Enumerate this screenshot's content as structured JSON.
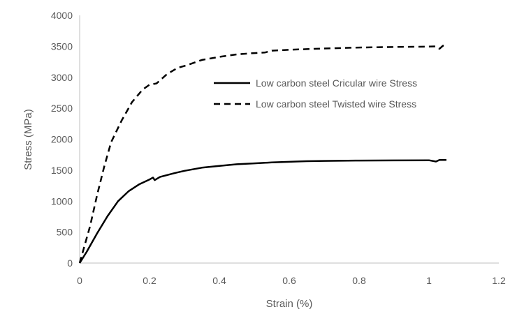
{
  "chart_data": {
    "type": "line",
    "xlabel": "Strain (%)",
    "ylabel": "Stress (MPa)",
    "xlim": [
      0,
      1.2
    ],
    "ylim": [
      0,
      4000
    ],
    "xticks": [
      "0",
      "0.2",
      "0.4",
      "0.6",
      "0.8",
      "1",
      "1.2"
    ],
    "yticks": [
      "0",
      "500",
      "1000",
      "1500",
      "2000",
      "2500",
      "3000",
      "3500",
      "4000"
    ],
    "grid": false,
    "legend_position": "upper-right-inside",
    "series": [
      {
        "name": "Low carbon steel Cricular wire Stress",
        "style": "solid",
        "color": "#000000",
        "points": [
          [
            0,
            0
          ],
          [
            0.02,
            180
          ],
          [
            0.05,
            480
          ],
          [
            0.08,
            760
          ],
          [
            0.11,
            1000
          ],
          [
            0.14,
            1160
          ],
          [
            0.17,
            1270
          ],
          [
            0.2,
            1350
          ],
          [
            0.21,
            1380
          ],
          [
            0.215,
            1340
          ],
          [
            0.23,
            1390
          ],
          [
            0.27,
            1450
          ],
          [
            0.3,
            1490
          ],
          [
            0.35,
            1540
          ],
          [
            0.4,
            1570
          ],
          [
            0.45,
            1595
          ],
          [
            0.5,
            1610
          ],
          [
            0.55,
            1625
          ],
          [
            0.6,
            1635
          ],
          [
            0.62,
            1640
          ],
          [
            0.65,
            1645
          ],
          [
            0.7,
            1650
          ],
          [
            0.8,
            1655
          ],
          [
            0.9,
            1658
          ],
          [
            1.0,
            1660
          ],
          [
            1.02,
            1640
          ],
          [
            1.03,
            1665
          ],
          [
            1.05,
            1665
          ]
        ]
      },
      {
        "name": "Low carbon steel Twisted wire Stress",
        "style": "dashed",
        "color": "#000000",
        "points": [
          [
            0,
            0
          ],
          [
            0.01,
            200
          ],
          [
            0.03,
            600
          ],
          [
            0.05,
            1100
          ],
          [
            0.07,
            1550
          ],
          [
            0.09,
            1950
          ],
          [
            0.12,
            2300
          ],
          [
            0.15,
            2600
          ],
          [
            0.18,
            2800
          ],
          [
            0.2,
            2880
          ],
          [
            0.22,
            2900
          ],
          [
            0.25,
            3050
          ],
          [
            0.28,
            3150
          ],
          [
            0.31,
            3200
          ],
          [
            0.35,
            3280
          ],
          [
            0.4,
            3330
          ],
          [
            0.45,
            3370
          ],
          [
            0.5,
            3390
          ],
          [
            0.53,
            3400
          ],
          [
            0.55,
            3430
          ],
          [
            0.6,
            3445
          ],
          [
            0.65,
            3455
          ],
          [
            0.7,
            3465
          ],
          [
            0.8,
            3480
          ],
          [
            0.9,
            3490
          ],
          [
            1.0,
            3495
          ],
          [
            1.02,
            3500
          ],
          [
            1.03,
            3460
          ],
          [
            1.04,
            3510
          ],
          [
            1.05,
            3500
          ]
        ]
      }
    ]
  }
}
